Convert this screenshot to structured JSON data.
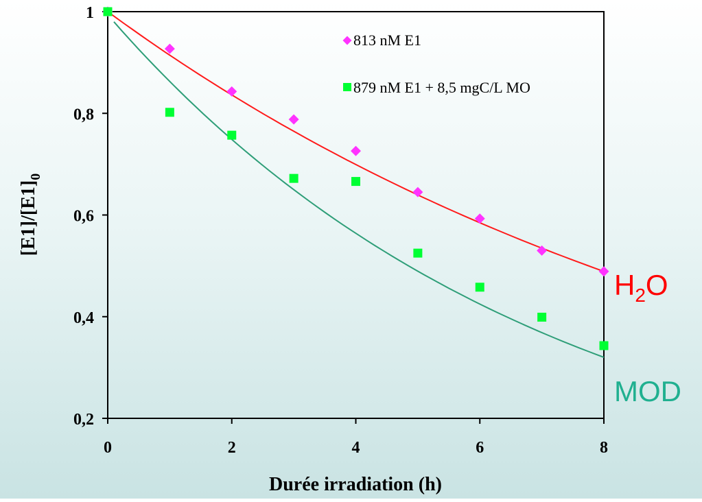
{
  "chart_data": {
    "type": "scatter",
    "xlabel": "Durée irradiation (h)",
    "ylabel": "[E1]/[E1]",
    "ylabel_sub": "0",
    "xlim": [
      0,
      8
    ],
    "ylim": [
      0.2,
      1
    ],
    "x_ticks": [
      "0",
      "2",
      "4",
      "6",
      "8"
    ],
    "y_ticks": [
      "0,2",
      "0,4",
      "0,6",
      "0,8",
      "1"
    ],
    "grid": false,
    "legend_position": "top-right",
    "series": [
      {
        "name": "813 nM E1",
        "marker": "diamond",
        "color": "#ff33ff",
        "fit_color": "#ff1a1a",
        "x": [
          0,
          1,
          2,
          3,
          4,
          5,
          6,
          7,
          8
        ],
        "y": [
          1.0,
          0.927,
          0.843,
          0.788,
          0.726,
          0.645,
          0.593,
          0.53,
          0.489
        ],
        "fit": {
          "x0": 0,
          "x1": 8,
          "y0": 1.0,
          "y1": 0.489
        }
      },
      {
        "name": "879 nM E1 + 8,5 mgC/L MO",
        "marker": "square",
        "color": "#00ff33",
        "fit_color": "#2e9e78",
        "x": [
          0,
          1,
          2,
          3,
          4,
          5,
          6,
          7,
          8
        ],
        "y": [
          1.0,
          0.802,
          0.757,
          0.672,
          0.666,
          0.525,
          0.458,
          0.399,
          0.343
        ],
        "fit": {
          "x0": 0.1,
          "x1": 8,
          "y0": 0.98,
          "y1": 0.32
        }
      }
    ],
    "annotations": [
      {
        "text": "H",
        "sub": "2",
        "tail": "O",
        "color": "#ff0000"
      },
      {
        "text": "MOD",
        "color": "#20b090"
      }
    ]
  }
}
